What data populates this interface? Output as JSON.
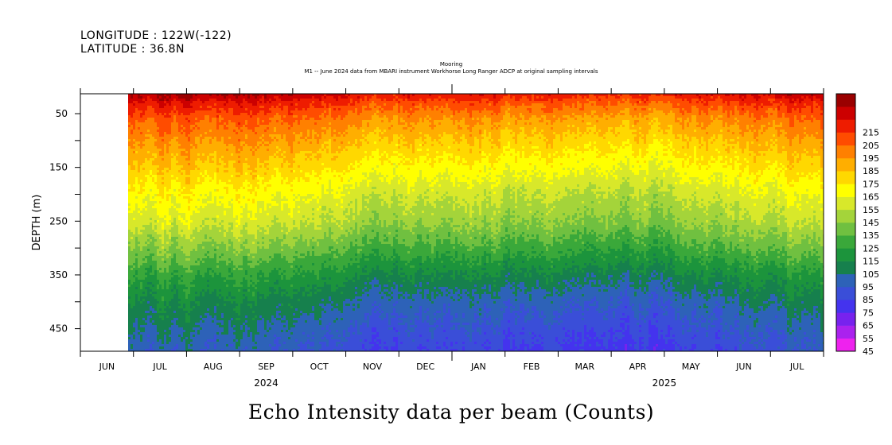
{
  "header": {
    "longitude": "LONGITUDE : 122W(-122)",
    "latitude": "LATITUDE : 36.8N",
    "subtitle1": "Mooring",
    "subtitle2": "M1 -- June 2024 data from MBARI instrument Workhorse Long Ranger ADCP at original sampling intervals"
  },
  "chart_data": {
    "type": "heatmap",
    "title": "Echo Intensity data per beam (Counts)",
    "ylabel": "DEPTH (m)",
    "xlabel": "",
    "x_months": [
      "JUN",
      "JUL",
      "AUG",
      "SEP",
      "OCT",
      "NOV",
      "DEC",
      "JAN",
      "FEB",
      "MAR",
      "APR",
      "MAY",
      "JUN",
      "JUL"
    ],
    "x_years": [
      {
        "label": "2024",
        "month_index": 3
      },
      {
        "label": "2025",
        "month_index": 10.5
      }
    ],
    "x_range_months": [
      0,
      14
    ],
    "data_start_month": 0.9,
    "ylim": [
      13,
      492
    ],
    "y_reversed": true,
    "y_ticks": [
      50,
      100,
      150,
      200,
      250,
      300,
      350,
      400,
      450
    ],
    "y_tick_labels": [
      "50",
      "",
      "150",
      "",
      "250",
      "",
      "350",
      "",
      "450"
    ],
    "colorbar": {
      "levels": [
        45,
        55,
        65,
        75,
        85,
        95,
        105,
        115,
        125,
        135,
        145,
        155,
        165,
        175,
        185,
        195,
        205,
        215
      ],
      "label_values": [
        "45",
        "55",
        "65",
        "75",
        "85",
        "95",
        "105",
        "115",
        "125",
        "135",
        "145",
        "155",
        "165",
        "175",
        "185",
        "195",
        "205",
        "215"
      ],
      "colors": [
        "#ee22ee",
        "#aa22ee",
        "#7722ee",
        "#4433ee",
        "#3a4ed8",
        "#2d62b8",
        "#16804d",
        "#1c943c",
        "#3aa83a",
        "#70c040",
        "#a4d43a",
        "#d8e82a",
        "#ffff00",
        "#ffd800",
        "#ffae00",
        "#ff8000",
        "#ff4c00",
        "#ee1c00",
        "#cc0000",
        "#9a0000"
      ]
    },
    "echo_profile": {
      "depth": [
        13,
        30,
        60,
        100,
        150,
        200,
        250,
        300,
        350,
        400,
        450,
        492
      ],
      "counts": [
        218,
        205,
        190,
        178,
        165,
        152,
        142,
        126,
        108,
        95,
        86,
        80
      ]
    },
    "seasonal_shift": {
      "month": [
        0.9,
        2,
        3,
        4,
        5,
        6,
        7,
        7.5,
        8,
        9,
        10,
        11,
        12,
        13,
        14
      ],
      "delta": [
        8,
        10,
        10,
        6,
        0,
        -6,
        -4,
        -2,
        -6,
        -7,
        -8,
        -8,
        -3,
        4,
        6
      ]
    }
  }
}
